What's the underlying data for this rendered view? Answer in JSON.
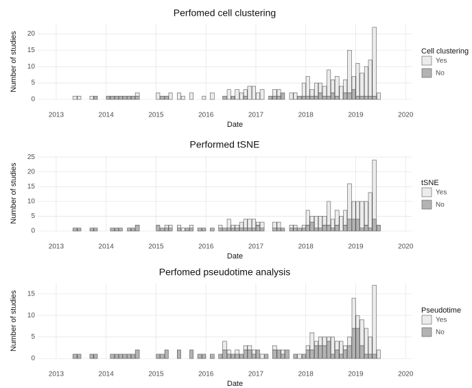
{
  "chart_data": [
    {
      "type": "histogram",
      "title": "Perfomed cell clustering",
      "x_label": "Date",
      "y_label": "Number of studies",
      "legend_title": "Cell clustering",
      "stacked": true,
      "grid": true,
      "bins": [
        2013,
        2013.08,
        2013.17,
        2013.25,
        2013.33,
        2013.42,
        2013.5,
        2013.58,
        2013.67,
        2013.75,
        2013.83,
        2013.92,
        2014,
        2014.08,
        2014.17,
        2014.25,
        2014.33,
        2014.42,
        2014.5,
        2014.58,
        2014.67,
        2014.75,
        2014.83,
        2014.92,
        2015,
        2015.08,
        2015.17,
        2015.25,
        2015.33,
        2015.42,
        2015.5,
        2015.58,
        2015.67,
        2015.75,
        2015.83,
        2015.92,
        2016,
        2016.08,
        2016.17,
        2016.25,
        2016.33,
        2016.42,
        2016.5,
        2016.58,
        2016.67,
        2016.75,
        2016.83,
        2016.92,
        2017,
        2017.08,
        2017.17,
        2017.25,
        2017.33,
        2017.42,
        2017.5,
        2017.58,
        2017.67,
        2017.75,
        2017.83,
        2017.92,
        2018,
        2018.08,
        2018.17,
        2018.25,
        2018.33,
        2018.42,
        2018.5,
        2018.58,
        2018.67,
        2018.75,
        2018.83,
        2018.92,
        2019,
        2019.08,
        2019.17,
        2019.25,
        2019.33,
        2019.42,
        2019.5
      ],
      "series": [
        {
          "name": "Yes",
          "color": "#ececec",
          "values": [
            0,
            0,
            0,
            0,
            1,
            1,
            0,
            0,
            1,
            0,
            0,
            0,
            0,
            0,
            0,
            0,
            0,
            0,
            0,
            1,
            0,
            0,
            0,
            0,
            2,
            0,
            0,
            2,
            0,
            2,
            1,
            0,
            2,
            0,
            0,
            1,
            0,
            2,
            0,
            0,
            0,
            3,
            0,
            3,
            2,
            2,
            4,
            4,
            2,
            3,
            0,
            0,
            2,
            2,
            0,
            0,
            2,
            2,
            0,
            4,
            6,
            2,
            4,
            3,
            3,
            8,
            4,
            6,
            4,
            4,
            13,
            4,
            10,
            7,
            9,
            11,
            21,
            2
          ]
        },
        {
          "name": "No",
          "color": "#b3b3b3",
          "values": [
            0,
            0,
            0,
            0,
            0,
            0,
            0,
            0,
            0,
            1,
            0,
            0,
            1,
            1,
            1,
            1,
            1,
            1,
            1,
            1,
            0,
            0,
            0,
            0,
            0,
            1,
            1,
            0,
            0,
            0,
            0,
            0,
            0,
            0,
            0,
            0,
            0,
            0,
            0,
            0,
            1,
            0,
            1,
            0,
            0,
            1,
            0,
            0,
            0,
            0,
            0,
            1,
            1,
            1,
            2,
            0,
            0,
            0,
            1,
            1,
            1,
            1,
            1,
            2,
            1,
            1,
            2,
            1,
            0,
            2,
            2,
            3,
            1,
            1,
            1,
            1,
            1,
            0
          ]
        }
      ],
      "xlim": [
        2012.63,
        2020.12
      ],
      "xticks": [
        2013,
        2014,
        2015,
        2016,
        2017,
        2018,
        2019,
        2020
      ],
      "ylim": [
        0,
        23
      ],
      "yticks": [
        0,
        5,
        10,
        15,
        20
      ]
    },
    {
      "type": "histogram",
      "title": "Performed tSNE",
      "x_label": "Date",
      "y_label": "Number of studies",
      "legend_title": "tSNE",
      "stacked": true,
      "grid": true,
      "bins": [
        2013,
        2013.08,
        2013.17,
        2013.25,
        2013.33,
        2013.42,
        2013.5,
        2013.58,
        2013.67,
        2013.75,
        2013.83,
        2013.92,
        2014,
        2014.08,
        2014.17,
        2014.25,
        2014.33,
        2014.42,
        2014.5,
        2014.58,
        2014.67,
        2014.75,
        2014.83,
        2014.92,
        2015,
        2015.08,
        2015.17,
        2015.25,
        2015.33,
        2015.42,
        2015.5,
        2015.58,
        2015.67,
        2015.75,
        2015.83,
        2015.92,
        2016,
        2016.08,
        2016.17,
        2016.25,
        2016.33,
        2016.42,
        2016.5,
        2016.58,
        2016.67,
        2016.75,
        2016.83,
        2016.92,
        2017,
        2017.08,
        2017.17,
        2017.25,
        2017.33,
        2017.42,
        2017.5,
        2017.58,
        2017.67,
        2017.75,
        2017.83,
        2017.92,
        2018,
        2018.08,
        2018.17,
        2018.25,
        2018.33,
        2018.42,
        2018.5,
        2018.58,
        2018.67,
        2018.75,
        2018.83,
        2018.92,
        2019,
        2019.08,
        2019.17,
        2019.25,
        2019.33,
        2019.42,
        2019.5
      ],
      "series": [
        {
          "name": "Yes",
          "color": "#ececec",
          "values": [
            0,
            0,
            0,
            0,
            0,
            0,
            0,
            0,
            0,
            0,
            0,
            0,
            0,
            0,
            0,
            0,
            0,
            0,
            0,
            0,
            0,
            0,
            0,
            0,
            0,
            0,
            1,
            1,
            0,
            1,
            1,
            0,
            1,
            0,
            0,
            0,
            0,
            0,
            0,
            1,
            0,
            3,
            1,
            1,
            2,
            3,
            3,
            3,
            1,
            2,
            0,
            0,
            2,
            2,
            0,
            0,
            1,
            1,
            0,
            1,
            5,
            2,
            4,
            4,
            3,
            8,
            3,
            5,
            5,
            5,
            12,
            6,
            6,
            9,
            8,
            12,
            20,
            0
          ]
        },
        {
          "name": "No",
          "color": "#b3b3b3",
          "values": [
            0,
            0,
            0,
            0,
            1,
            1,
            0,
            0,
            1,
            1,
            0,
            0,
            0,
            1,
            1,
            1,
            0,
            1,
            1,
            2,
            0,
            0,
            0,
            0,
            2,
            1,
            1,
            1,
            0,
            1,
            0,
            1,
            1,
            0,
            1,
            1,
            0,
            1,
            0,
            1,
            1,
            1,
            1,
            1,
            1,
            1,
            1,
            1,
            2,
            1,
            0,
            0,
            1,
            1,
            1,
            0,
            1,
            1,
            1,
            1,
            2,
            3,
            1,
            1,
            2,
            2,
            1,
            2,
            0,
            2,
            4,
            4,
            4,
            1,
            2,
            1,
            4,
            2
          ]
        }
      ],
      "xlim": [
        2012.63,
        2020.12
      ],
      "xticks": [
        2013,
        2014,
        2015,
        2016,
        2017,
        2018,
        2019,
        2020
      ],
      "ylim": [
        0,
        25.5
      ],
      "yticks": [
        0,
        5,
        10,
        15,
        20,
        25
      ]
    },
    {
      "type": "histogram",
      "title": "Perfomed pseudotime analysis",
      "x_label": "Date",
      "y_label": "Number of studies",
      "legend_title": "Pseudotime",
      "stacked": true,
      "grid": true,
      "bins": [
        2013,
        2013.08,
        2013.17,
        2013.25,
        2013.33,
        2013.42,
        2013.5,
        2013.58,
        2013.67,
        2013.75,
        2013.83,
        2013.92,
        2014,
        2014.08,
        2014.17,
        2014.25,
        2014.33,
        2014.42,
        2014.5,
        2014.58,
        2014.67,
        2014.75,
        2014.83,
        2014.92,
        2015,
        2015.08,
        2015.17,
        2015.25,
        2015.33,
        2015.42,
        2015.5,
        2015.58,
        2015.67,
        2015.75,
        2015.83,
        2015.92,
        2016,
        2016.08,
        2016.17,
        2016.25,
        2016.33,
        2016.42,
        2016.5,
        2016.58,
        2016.67,
        2016.75,
        2016.83,
        2016.92,
        2017,
        2017.08,
        2017.17,
        2017.25,
        2017.33,
        2017.42,
        2017.5,
        2017.58,
        2017.67,
        2017.75,
        2017.83,
        2017.92,
        2018,
        2018.08,
        2018.17,
        2018.25,
        2018.33,
        2018.42,
        2018.5,
        2018.58,
        2018.67,
        2018.75,
        2018.83,
        2018.92,
        2019,
        2019.08,
        2019.17,
        2019.25,
        2019.33,
        2019.42,
        2019.5
      ],
      "series": [
        {
          "name": "Yes",
          "color": "#ececec",
          "values": [
            0,
            0,
            0,
            0,
            0,
            0,
            0,
            0,
            0,
            0,
            0,
            0,
            0,
            0,
            0,
            0,
            0,
            0,
            0,
            0,
            0,
            0,
            0,
            0,
            0,
            0,
            0,
            0,
            0,
            0,
            0,
            0,
            0,
            0,
            0,
            0,
            0,
            0,
            0,
            0,
            2,
            1,
            0,
            1,
            0,
            1,
            1,
            1,
            0,
            1,
            0,
            0,
            1,
            0,
            1,
            0,
            0,
            0,
            1,
            0,
            1,
            4,
            1,
            2,
            2,
            1,
            4,
            2,
            3,
            1,
            2,
            7,
            3,
            6,
            6,
            4,
            16,
            2
          ]
        },
        {
          "name": "No",
          "color": "#b3b3b3",
          "values": [
            0,
            0,
            0,
            0,
            1,
            1,
            0,
            0,
            1,
            1,
            0,
            0,
            0,
            1,
            1,
            1,
            1,
            1,
            1,
            2,
            0,
            0,
            0,
            0,
            1,
            1,
            2,
            0,
            0,
            2,
            0,
            0,
            2,
            0,
            1,
            1,
            0,
            1,
            0,
            1,
            2,
            1,
            1,
            1,
            1,
            2,
            2,
            1,
            2,
            0,
            1,
            0,
            2,
            2,
            1,
            2,
            0,
            1,
            0,
            1,
            2,
            2,
            3,
            3,
            3,
            4,
            1,
            2,
            1,
            2,
            3,
            7,
            7,
            3,
            1,
            1,
            1,
            0
          ]
        }
      ],
      "xlim": [
        2012.63,
        2020.12
      ],
      "xticks": [
        2013,
        2014,
        2015,
        2016,
        2017,
        2018,
        2019,
        2020
      ],
      "ylim": [
        0,
        17.5
      ],
      "yticks": [
        0,
        5,
        10,
        15
      ]
    }
  ]
}
